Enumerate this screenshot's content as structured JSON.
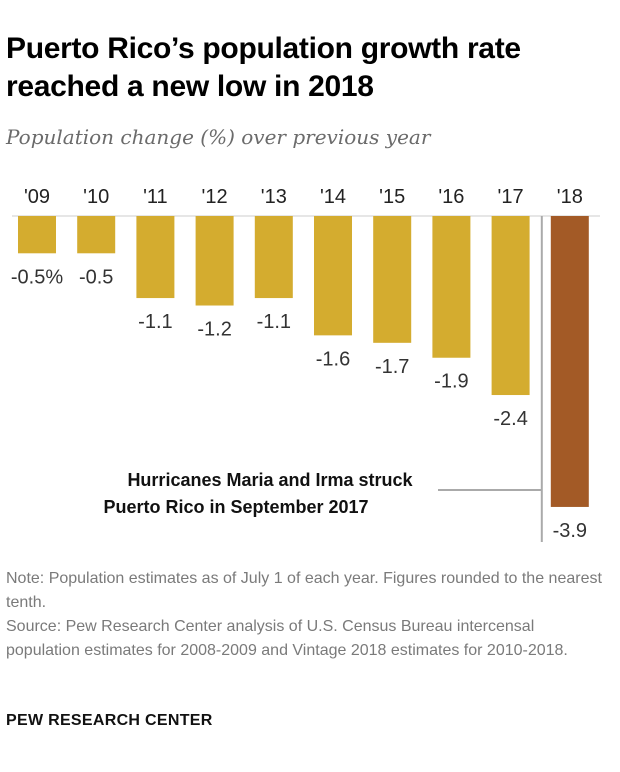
{
  "title": "Puerto Rico’s population growth rate reached a new low in 2018",
  "subtitle": "Population change (%) over previous year",
  "chart_data": {
    "type": "bar",
    "categories": [
      "'09",
      "'10",
      "'11",
      "'12",
      "'13",
      "'14",
      "'15",
      "'16",
      "'17",
      "'18"
    ],
    "values": [
      -0.5,
      -0.5,
      -1.1,
      -1.2,
      -1.1,
      -1.6,
      -1.7,
      -1.9,
      -2.4,
      -3.9
    ],
    "value_labels": [
      "-0.5%",
      "-0.5",
      "-1.1",
      "-1.2",
      "-1.1",
      "-1.6",
      "-1.7",
      "-1.9",
      "-2.4",
      "-3.9"
    ],
    "ylim": [
      -3.9,
      0
    ],
    "colors": {
      "default": "#D4AC2F",
      "highlight": "#A35A26",
      "divider": "#AAAAAA",
      "baseline": "#CCCCCC"
    },
    "highlight_index": 9,
    "annotation_lines": [
      "Hurricanes Maria and Irma struck",
      "Puerto Rico in September 2017"
    ]
  },
  "note": "Note: Population estimates as of July 1 of each year. Figures rounded to the nearest tenth.",
  "source": "Source: Pew Research Center analysis of U.S. Census Bureau intercensal population estimates for 2008-2009 and Vintage 2018 estimates for 2010-2018.",
  "brand": "PEW RESEARCH CENTER"
}
